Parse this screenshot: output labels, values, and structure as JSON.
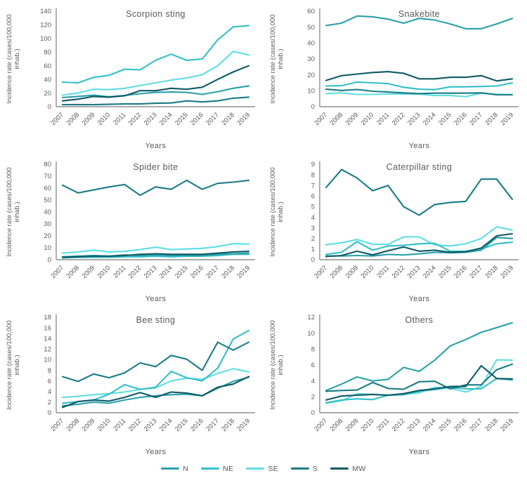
{
  "figure": {
    "xlabel": "Years",
    "ylabel_lines": [
      "Incidence rate (cases/100,000",
      "inhab.)"
    ],
    "years": [
      2007,
      2008,
      2009,
      2010,
      2011,
      2012,
      2013,
      2014,
      2015,
      2016,
      2017,
      2018,
      2019
    ]
  },
  "legend": {
    "entries": [
      {
        "label": "N",
        "color": "#2AA0A9"
      },
      {
        "label": "NE",
        "color": "#33BFC9"
      },
      {
        "label": "SE",
        "color": "#5FDEE4"
      },
      {
        "label": "S",
        "color": "#1A7B85"
      },
      {
        "label": "MW",
        "color": "#0E5A64"
      }
    ]
  },
  "text_colors": {
    "title": "#58595b",
    "tick": "#595959",
    "axis": "#8f8f8f"
  },
  "chart_data": [
    {
      "type": "line",
      "title": "Scorpion sting",
      "xlabel": "Years",
      "ylabel": "Incidence rate (cases/100,000 inhab.)",
      "ylim": [
        0,
        140
      ],
      "ystep": 20,
      "x": [
        2007,
        2008,
        2009,
        2010,
        2011,
        2012,
        2013,
        2014,
        2015,
        2016,
        2017,
        2018,
        2019
      ],
      "series": [
        {
          "name": "SE",
          "values": [
            17,
            20,
            25.5,
            25,
            27,
            31,
            35,
            39,
            42,
            47,
            60,
            81,
            76
          ]
        },
        {
          "name": "NE",
          "values": [
            36,
            35,
            43,
            46,
            55,
            54,
            68,
            77,
            68,
            70,
            98,
            117,
            119
          ]
        },
        {
          "name": "N",
          "values": [
            13.5,
            15,
            17,
            14.5,
            16.5,
            19,
            21,
            21.5,
            21,
            18,
            22,
            27,
            30.5
          ]
        },
        {
          "name": "S",
          "values": [
            3,
            3,
            3,
            3.5,
            4,
            4,
            5,
            5.5,
            8.5,
            7,
            8.5,
            12.5,
            14
          ]
        },
        {
          "name": "MW",
          "values": [
            8.5,
            11,
            15,
            14,
            16,
            23.5,
            23.5,
            27,
            25.5,
            28.5,
            40,
            51,
            60
          ]
        }
      ]
    },
    {
      "type": "line",
      "title": "Snakebite",
      "xlabel": "Years",
      "ylabel": "Incidence rate (cases/100,000 inhab.)",
      "ylim": [
        0,
        60
      ],
      "ystep": 10,
      "x": [
        2007,
        2008,
        2009,
        2010,
        2011,
        2012,
        2013,
        2014,
        2015,
        2016,
        2017,
        2018,
        2019
      ],
      "series": [
        {
          "name": "SE",
          "values": [
            8.2,
            8.7,
            7.7,
            7.7,
            8,
            8,
            7.9,
            7,
            7,
            6.3,
            8.5,
            7.8,
            7.5
          ]
        },
        {
          "name": "NE",
          "values": [
            13,
            13.2,
            15.5,
            15,
            14.5,
            12.2,
            11,
            10.7,
            12.5,
            12.5,
            12.7,
            13,
            15
          ]
        },
        {
          "name": "N",
          "values": [
            51,
            52.5,
            57,
            56.5,
            55,
            52.5,
            55.5,
            54.5,
            52,
            49,
            49,
            52,
            55.5
          ]
        },
        {
          "name": "S",
          "values": [
            11,
            10.2,
            10.8,
            9.7,
            9.2,
            8.7,
            8.2,
            8.5,
            8.5,
            8.5,
            8.7,
            7.5,
            7.5
          ]
        },
        {
          "name": "MW",
          "values": [
            16.5,
            19.5,
            20.5,
            21.5,
            22,
            21,
            17.5,
            17.5,
            18.5,
            18.5,
            19.5,
            16.2,
            17.5
          ]
        }
      ]
    },
    {
      "type": "line",
      "title": "Spider bite",
      "xlabel": "Years",
      "ylabel": "Incidence rate (cases/100,000 inhab.)",
      "ylim": [
        0,
        80
      ],
      "ystep": 10,
      "x": [
        2007,
        2008,
        2009,
        2010,
        2011,
        2012,
        2013,
        2014,
        2015,
        2016,
        2017,
        2018,
        2019
      ],
      "series": [
        {
          "name": "SE",
          "values": [
            5.5,
            6.5,
            8,
            6.5,
            7,
            8.5,
            10.5,
            8.5,
            9,
            9.5,
            11,
            13.5,
            13
          ]
        },
        {
          "name": "NE",
          "values": [
            1.5,
            2,
            2,
            2,
            2.5,
            2.5,
            3,
            2.5,
            3,
            3,
            3.5,
            4.5,
            4.5
          ]
        },
        {
          "name": "N",
          "values": [
            2.5,
            3,
            3.5,
            3,
            4,
            3.5,
            4,
            3.5,
            3.5,
            3.5,
            4.5,
            5,
            5.5
          ]
        },
        {
          "name": "S",
          "values": [
            62.5,
            56,
            58.5,
            61,
            63,
            54,
            61,
            59,
            66.5,
            59,
            64,
            65,
            66.5
          ]
        },
        {
          "name": "MW",
          "values": [
            2,
            2.5,
            3,
            3,
            3.5,
            4.5,
            5,
            4.5,
            4.5,
            4.5,
            5.5,
            6.5,
            7
          ]
        }
      ]
    },
    {
      "type": "line",
      "title": "Caterpillar sting",
      "xlabel": "Years",
      "ylabel": "Incidence rate (cases/100,000 inhab.)",
      "ylim": [
        0,
        9
      ],
      "ystep": 1,
      "x": [
        2007,
        2008,
        2009,
        2010,
        2011,
        2012,
        2013,
        2014,
        2015,
        2016,
        2017,
        2018,
        2019
      ],
      "series": [
        {
          "name": "SE",
          "values": [
            1.4,
            1.6,
            1.9,
            1.45,
            1.45,
            2.15,
            2.15,
            1.4,
            1.3,
            1.5,
            2.0,
            3.1,
            2.8
          ]
        },
        {
          "name": "NE",
          "values": [
            0.5,
            0.7,
            1.7,
            0.9,
            1.3,
            1.35,
            1.5,
            1.55,
            0.8,
            0.8,
            1.0,
            1.5,
            1.65
          ]
        },
        {
          "name": "N",
          "values": [
            0.35,
            0.35,
            0.4,
            0.35,
            0.5,
            0.45,
            0.55,
            0.7,
            0.65,
            0.7,
            0.9,
            2.1,
            2.0
          ]
        },
        {
          "name": "S",
          "values": [
            6.8,
            8.5,
            7.7,
            6.5,
            7.0,
            5.0,
            4.2,
            5.2,
            5.4,
            5.5,
            7.6,
            7.6,
            5.7
          ]
        },
        {
          "name": "MW",
          "values": [
            0.3,
            0.4,
            0.8,
            0.45,
            0.85,
            1.2,
            0.8,
            0.9,
            0.7,
            0.75,
            1.1,
            2.25,
            2.45
          ]
        }
      ]
    },
    {
      "type": "line",
      "title": "Bee sting",
      "xlabel": "Years",
      "ylabel": "Incidence rate (cases/100,000 inhab.)",
      "ylim": [
        0,
        18
      ],
      "ystep": 2,
      "x": [
        2007,
        2008,
        2009,
        2010,
        2011,
        2012,
        2013,
        2014,
        2015,
        2016,
        2017,
        2018,
        2019
      ],
      "series": [
        {
          "name": "SE",
          "values": [
            2.9,
            3.1,
            3.4,
            3.6,
            3.9,
            4.4,
            4.7,
            6.0,
            6.5,
            6.3,
            7.4,
            8.3,
            7.7
          ]
        },
        {
          "name": "NE",
          "values": [
            1.8,
            2.1,
            2.4,
            3.5,
            5.3,
            4.4,
            4.8,
            7.8,
            6.6,
            6.0,
            8.4,
            13.9,
            15.5
          ]
        },
        {
          "name": "N",
          "values": [
            1.3,
            1.6,
            2.0,
            1.8,
            2.4,
            2.9,
            3.2,
            3.4,
            3.5,
            3.2,
            4.6,
            5.9,
            6.7
          ]
        },
        {
          "name": "S",
          "values": [
            6.8,
            5.9,
            7.3,
            6.6,
            7.5,
            9.4,
            8.7,
            10.8,
            10.1,
            8.0,
            13.3,
            11.8,
            13.3
          ]
        },
        {
          "name": "MW",
          "values": [
            1.0,
            2.1,
            2.4,
            2.2,
            2.9,
            3.8,
            2.9,
            3.9,
            3.7,
            3.2,
            4.8,
            5.4,
            6.8
          ]
        }
      ]
    },
    {
      "type": "line",
      "title": "Others",
      "xlabel": "Years",
      "ylabel": "Incidence rate (cases/100,000 inhab.)",
      "ylim": [
        0,
        12
      ],
      "ystep": 2,
      "x": [
        2007,
        2008,
        2009,
        2010,
        2011,
        2012,
        2013,
        2014,
        2015,
        2016,
        2017,
        2018,
        2019
      ],
      "series": [
        {
          "name": "SE",
          "values": [
            1.2,
            1.5,
            2.4,
            2.3,
            2.2,
            2.3,
            2.5,
            3.2,
            3.1,
            2.6,
            3.3,
            6.65,
            6.6
          ]
        },
        {
          "name": "NE",
          "values": [
            1.25,
            1.6,
            1.75,
            1.65,
            2.2,
            2.25,
            2.7,
            2.9,
            3.2,
            3.0,
            3.0,
            4.3,
            4.1
          ]
        },
        {
          "name": "N",
          "values": [
            2.8,
            3.6,
            4.5,
            4.0,
            4.2,
            5.7,
            5.2,
            6.6,
            8.4,
            9.2,
            10.1,
            10.7,
            11.3
          ]
        },
        {
          "name": "S",
          "values": [
            2.7,
            2.8,
            2.85,
            3.8,
            3.05,
            2.95,
            3.9,
            3.95,
            3.0,
            3.5,
            3.5,
            5.4,
            6.1
          ]
        },
        {
          "name": "MW",
          "values": [
            1.6,
            2.1,
            2.2,
            2.3,
            2.2,
            2.4,
            2.8,
            3.0,
            3.3,
            3.3,
            5.9,
            4.3,
            4.25
          ]
        }
      ]
    }
  ]
}
